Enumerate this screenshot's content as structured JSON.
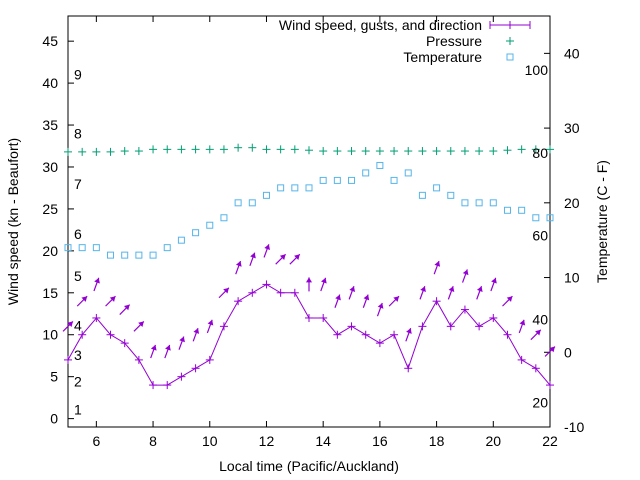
{
  "chart_data": {
    "type": "line",
    "xlabel": "Local time (Pacific/Auckland)",
    "ylabel_left": "Wind speed (kn - Beaufort)",
    "ylabel_right": "Temperature (C - F)",
    "xlim": [
      5,
      22
    ],
    "ylim_left": [
      -1,
      48
    ],
    "ylim_right": [
      -10,
      45
    ],
    "x_ticks": [
      6,
      8,
      10,
      12,
      14,
      16,
      18,
      20,
      22
    ],
    "y_ticks_left": [
      0,
      5,
      10,
      15,
      20,
      25,
      30,
      35,
      40,
      45
    ],
    "y_ticks_right": [
      -10,
      0,
      10,
      20,
      30,
      40
    ],
    "beaufort_labels": [
      {
        "text": "1",
        "y": 1.1
      },
      {
        "text": "2",
        "y": 4.4
      },
      {
        "text": "3",
        "y": 7.6
      },
      {
        "text": "4",
        "y": 11.1
      },
      {
        "text": "5",
        "y": 17.0
      },
      {
        "text": "6",
        "y": 22.0
      },
      {
        "text": "7",
        "y": 28.0
      },
      {
        "text": "8",
        "y": 34.0
      },
      {
        "text": "9",
        "y": 41.0
      }
    ],
    "fahrenheit_labels": [
      {
        "text": "20",
        "y": -6.7
      },
      {
        "text": "40",
        "y": 4.4
      },
      {
        "text": "60",
        "y": 15.6
      },
      {
        "text": "80",
        "y": 26.7
      },
      {
        "text": "100",
        "y": 37.8
      }
    ],
    "legend": {
      "position": "top-right",
      "entries": [
        "Wind speed, gusts, and direction",
        "Pressure",
        "Temperature"
      ]
    },
    "colors": {
      "wind": "#9400d3",
      "pressure": "#009e73",
      "temperature": "#56b4e9"
    },
    "series": [
      {
        "name": "Wind speed, gusts, and direction",
        "x": [
          5,
          5.5,
          6,
          6.5,
          7,
          7.5,
          8,
          8.5,
          9,
          9.5,
          10,
          10.5,
          11,
          11.5,
          12,
          12.5,
          13,
          13.5,
          14,
          14.5,
          15,
          15.5,
          16,
          16.5,
          17,
          17.5,
          18,
          18.5,
          19,
          19.5,
          20,
          20.5,
          21,
          21.5,
          22
        ],
        "y": [
          7,
          10,
          12,
          10,
          9,
          7,
          4,
          4,
          5,
          6,
          7,
          11,
          14,
          15,
          16,
          15,
          15,
          12,
          12,
          10,
          11,
          10,
          9,
          10,
          6,
          11,
          14,
          11,
          13,
          11,
          12,
          10,
          7,
          6,
          4
        ],
        "gust": [
          11,
          14,
          16,
          14,
          13,
          11,
          8,
          8,
          9,
          10,
          11,
          15,
          18,
          19,
          20,
          19,
          19,
          16,
          16,
          14,
          15,
          14,
          13,
          14,
          10,
          15,
          18,
          15,
          17,
          15,
          16,
          14,
          11,
          10,
          8
        ],
        "direction_deg": [
          225,
          225,
          200,
          225,
          225,
          225,
          200,
          200,
          200,
          200,
          200,
          225,
          200,
          200,
          200,
          225,
          225,
          180,
          200,
          200,
          200,
          200,
          200,
          225,
          200,
          200,
          200,
          200,
          200,
          200,
          200,
          225,
          200,
          225,
          225
        ]
      },
      {
        "name": "Pressure",
        "x": [
          5,
          5.5,
          6,
          6.5,
          7,
          7.5,
          8,
          8.5,
          9,
          9.5,
          10,
          10.5,
          11,
          11.5,
          12,
          12.5,
          13,
          13.5,
          14,
          14.5,
          15,
          15.5,
          16,
          16.5,
          17,
          17.5,
          18,
          18.5,
          19,
          19.5,
          20,
          20.5,
          21,
          21.5,
          22
        ],
        "y": [
          31.8,
          31.8,
          31.8,
          31.8,
          31.9,
          31.9,
          32.1,
          32.1,
          32.1,
          32.1,
          32.1,
          32.1,
          32.3,
          32.3,
          32.1,
          32.1,
          32.1,
          32.0,
          31.9,
          31.9,
          31.9,
          31.9,
          31.9,
          31.9,
          31.9,
          31.9,
          31.9,
          31.9,
          31.9,
          31.9,
          31.9,
          32.0,
          32.1,
          32.1,
          32.1
        ]
      },
      {
        "name": "Temperature",
        "x": [
          5,
          5.5,
          6,
          6.5,
          7,
          7.5,
          8,
          8.5,
          9,
          9.5,
          10,
          10.5,
          11,
          11.5,
          12,
          12.5,
          13,
          13.5,
          14,
          14.5,
          15,
          15.5,
          16,
          16.5,
          17,
          17.5,
          18,
          18.5,
          19,
          19.5,
          20,
          20.5,
          21,
          21.5,
          22
        ],
        "y": [
          14,
          14,
          14,
          13,
          13,
          13,
          13,
          14,
          15,
          16,
          17,
          18,
          20,
          20,
          21,
          22,
          22,
          22,
          23,
          23,
          23,
          24,
          25,
          23,
          24,
          21,
          22,
          21,
          20,
          20,
          20,
          19,
          19,
          18,
          18
        ]
      }
    ]
  }
}
